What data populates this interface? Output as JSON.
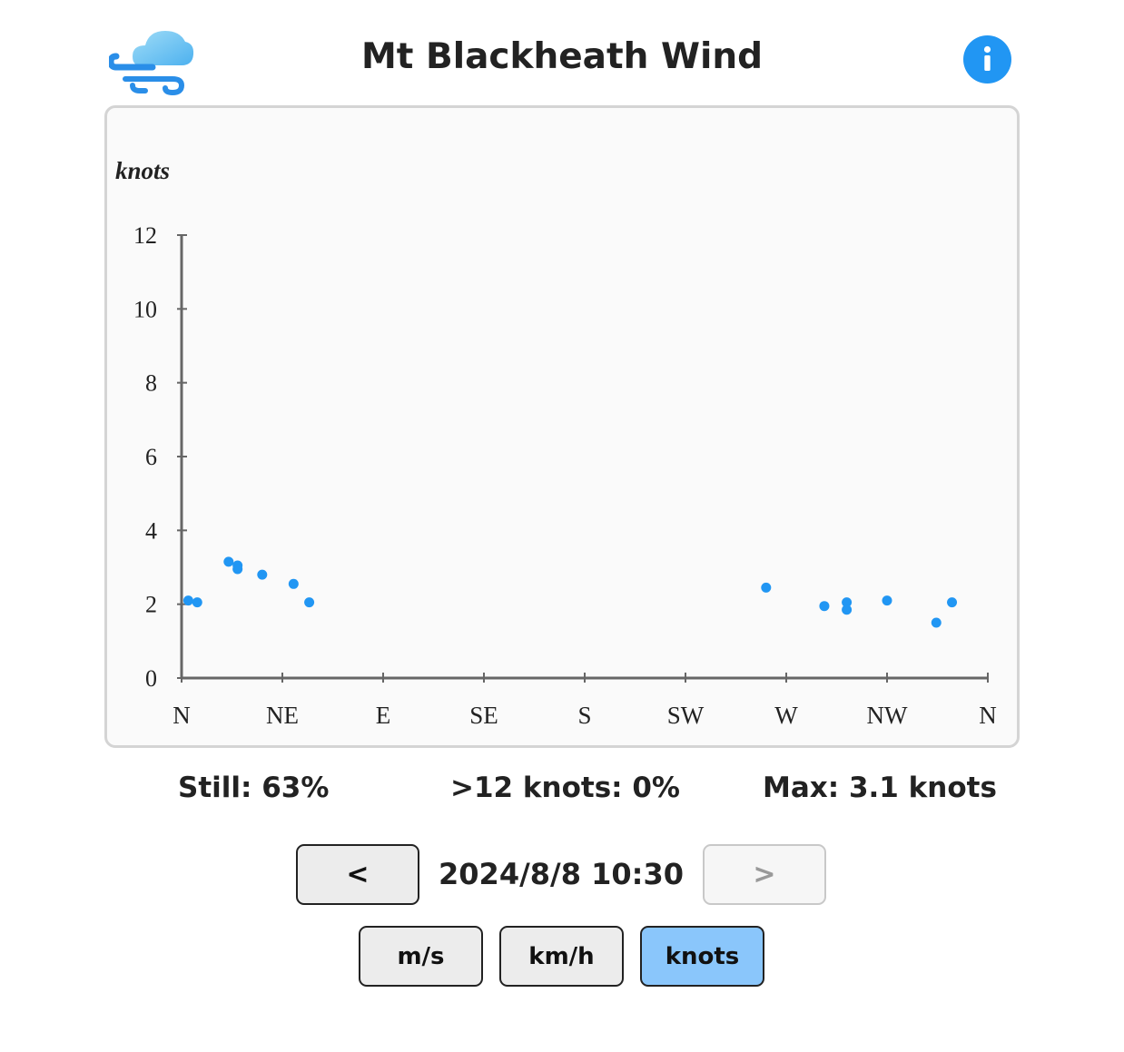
{
  "header": {
    "title": "Mt Blackheath Wind",
    "logo_icon": "cloud-wind-icon",
    "info_icon": "info-icon",
    "info_label": "i"
  },
  "chart_data": {
    "type": "scatter",
    "title": "",
    "ylabel": "knots",
    "xlabel": "",
    "x_tick_labels": [
      "N",
      "NE",
      "E",
      "SE",
      "S",
      "SW",
      "W",
      "NW",
      "N"
    ],
    "x_range_degrees": [
      0,
      360
    ],
    "y_ticks": [
      0,
      2,
      4,
      6,
      8,
      10,
      12
    ],
    "ylim": [
      0,
      12
    ],
    "grid": false,
    "point_color": "#2196f3",
    "series": [
      {
        "direction_degrees": [
          3,
          7,
          21,
          25,
          25,
          36,
          50,
          57,
          261,
          287,
          297,
          297,
          315,
          337,
          344
        ],
        "speed_knots": [
          2.1,
          2.05,
          3.15,
          3.05,
          2.95,
          2.8,
          2.55,
          2.05,
          2.45,
          1.95,
          2.05,
          1.85,
          2.1,
          1.5,
          2.05
        ]
      }
    ]
  },
  "stats": {
    "still": "Still: 63%",
    "over": ">12 knots: 0%",
    "max": "Max: 3.1 knots"
  },
  "nav": {
    "prev_label": "<",
    "datetime": "2024/8/8 10:30",
    "next_label": ">"
  },
  "units": {
    "ms": "m/s",
    "kmh": "km/h",
    "knots": "knots",
    "active": "knots",
    "active_color": "#8ac6fb"
  }
}
